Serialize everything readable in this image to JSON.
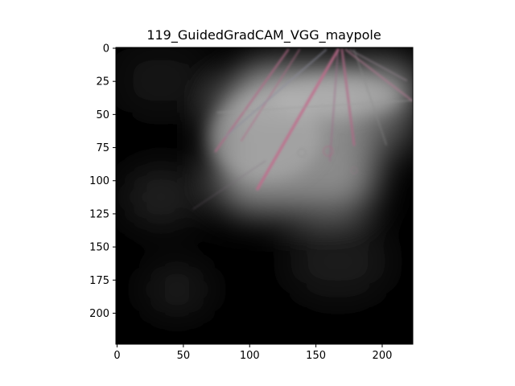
{
  "figure": {
    "title": "119_GuidedGradCAM_VGG_maypole"
  },
  "image": {
    "description_tags": [
      "guided-gradcam-heatmap",
      "maypole-ribbons"
    ],
    "extent": {
      "width": 224,
      "height": 224
    },
    "colors": {
      "background": "#000000",
      "highlight": "#c9c9c9",
      "ribbon_pink": "#b06a86",
      "ribbon_gray": "#8a8a8a"
    }
  },
  "axes": {
    "x_ticks": [
      0,
      50,
      100,
      150,
      200
    ],
    "y_ticks": [
      0,
      25,
      50,
      75,
      100,
      125,
      150,
      175,
      200
    ],
    "x_range": [
      0,
      224
    ],
    "y_range": [
      0,
      224
    ],
    "y_inverted": true
  }
}
